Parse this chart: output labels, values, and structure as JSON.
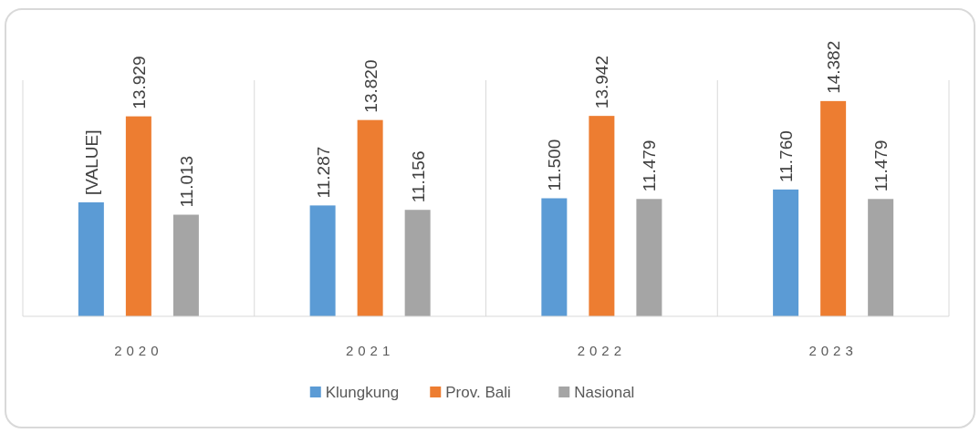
{
  "chart_data": {
    "type": "bar",
    "categories": [
      "2020",
      "2021",
      "2022",
      "2023"
    ],
    "series": [
      {
        "name": "Klungkung",
        "color": "#5b9bd5",
        "values": [
          11.38,
          11.287,
          11.5,
          11.76
        ],
        "value_labels": [
          "[VALUE]",
          "11.287",
          "11.500",
          "11.760"
        ]
      },
      {
        "name": "Prov. Bali",
        "color": "#ed7d31",
        "values": [
          13.929,
          13.82,
          13.942,
          14.382
        ],
        "value_labels": [
          "13.929",
          "13.820",
          "13.942",
          "14.382"
        ]
      },
      {
        "name": "Nasional",
        "color": "#a5a5a5",
        "values": [
          11.013,
          11.156,
          11.479,
          11.479
        ],
        "value_labels": [
          "11.013",
          "11.156",
          "11.479",
          "11.479"
        ]
      }
    ],
    "ylim": [
      8,
      15
    ],
    "tick_labels": "x",
    "grid": "x",
    "legend": "bottom"
  }
}
